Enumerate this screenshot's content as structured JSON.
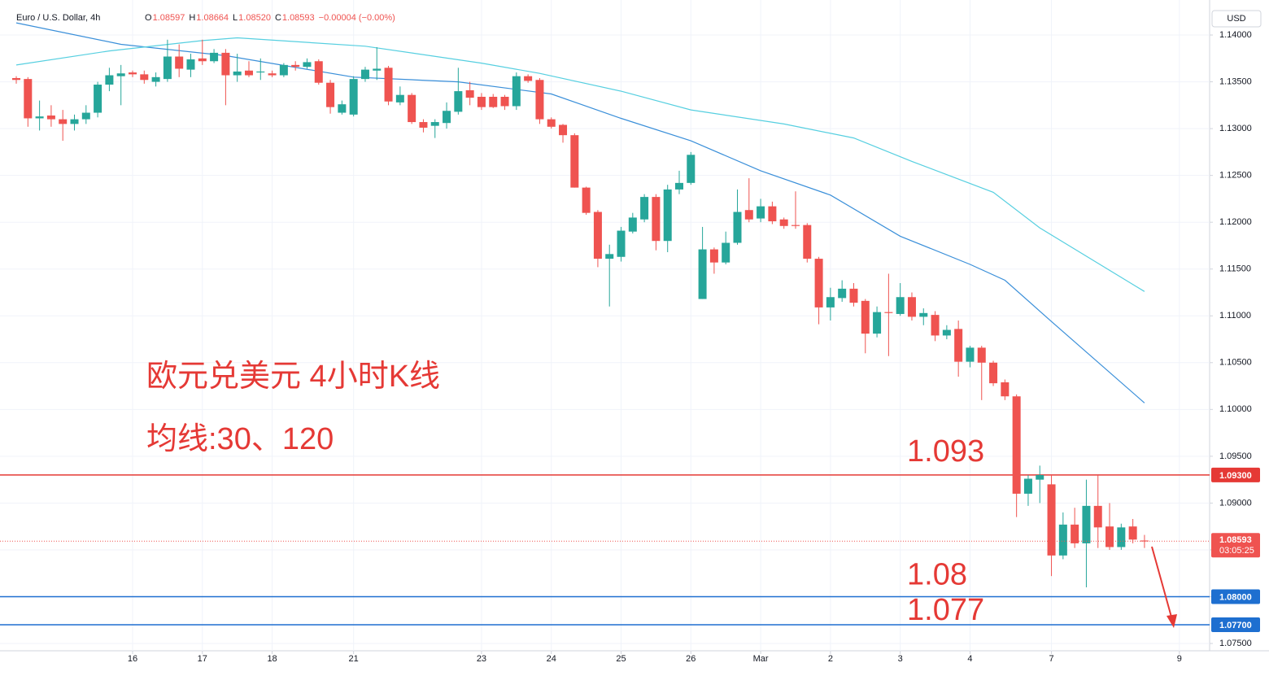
{
  "header": {
    "symbol": "Euro / U.S. Dollar, 4h",
    "ohlc": [
      {
        "key": "O",
        "value": "1.08597"
      },
      {
        "key": "H",
        "value": "1.08664"
      },
      {
        "key": "L",
        "value": "1.08520"
      },
      {
        "key": "C",
        "value": "1.08593"
      }
    ],
    "change": "−0.00004 (−0.00%)",
    "currency": "USD"
  },
  "chart_data": {
    "type": "candlestick",
    "annotations": [
      "欧元兑美元 4小时K线",
      "均线:30、120"
    ],
    "up_color": "#26a69a",
    "down_color": "#ef5350",
    "grid": true,
    "open": [
      1.1354,
      1.1353,
      1.1311,
      1.1314,
      1.131,
      1.1305,
      1.131,
      1.1317,
      1.1347,
      1.1356,
      1.136,
      1.1358,
      1.135,
      1.1353,
      1.1377,
      1.1363,
      1.1375,
      1.1372,
      1.1381,
      1.1357,
      1.1362,
      1.136,
      1.1359,
      1.1357,
      1.1368,
      1.1366,
      1.1372,
      1.1349,
      1.1317,
      1.1315,
      1.1353,
      1.1362,
      1.1365,
      1.1328,
      1.1336,
      1.1307,
      1.1303,
      1.1306,
      1.1318,
      1.1341,
      1.1334,
      1.1334,
      1.1334,
      1.1324,
      1.1356,
      1.1352,
      1.131,
      1.1304,
      1.1293,
      1.1237,
      1.1211,
      1.1161,
      1.1163,
      1.119,
      1.1203,
      1.1227,
      1.118,
      1.1235,
      1.1242,
      1.1118,
      1.1171,
      1.1157,
      1.1178,
      1.1213,
      1.1204,
      1.1217,
      1.1203,
      1.1197,
      1.1197,
      1.1161,
      1.1109,
      1.1119,
      1.1129,
      1.1116,
      1.1081,
      1.1104,
      1.1102,
      1.112,
      1.1099,
      1.1101,
      1.1079,
      1.1086,
      1.1051,
      1.1066,
      1.105,
      1.1029,
      1.1014,
      1.091,
      1.0925,
      1.092,
      1.0844,
      1.0877,
      1.0857,
      1.0897,
      1.0875,
      1.0853,
      1.0875,
      1.086
    ],
    "high": [
      1.1356,
      1.1355,
      1.133,
      1.1325,
      1.132,
      1.1315,
      1.1325,
      1.135,
      1.1365,
      1.1368,
      1.1362,
      1.1362,
      1.136,
      1.1395,
      1.139,
      1.138,
      1.1395,
      1.1385,
      1.1385,
      1.138,
      1.1372,
      1.1375,
      1.1362,
      1.137,
      1.1372,
      1.1375,
      1.1374,
      1.1352,
      1.133,
      1.1356,
      1.1366,
      1.1387,
      1.1367,
      1.1345,
      1.1338,
      1.131,
      1.131,
      1.1328,
      1.1365,
      1.135,
      1.1338,
      1.1337,
      1.1336,
      1.136,
      1.1358,
      1.1354,
      1.1312,
      1.1305,
      1.1295,
      1.1238,
      1.1213,
      1.1176,
      1.1195,
      1.121,
      1.123,
      1.123,
      1.124,
      1.1255,
      1.1275,
      1.1195,
      1.1173,
      1.119,
      1.1235,
      1.1247,
      1.1225,
      1.1222,
      1.1205,
      1.1233,
      1.1199,
      1.1163,
      1.113,
      1.1138,
      1.1135,
      1.1118,
      1.111,
      1.1145,
      1.1135,
      1.1125,
      1.1108,
      1.1105,
      1.109,
      1.1095,
      1.1068,
      1.1068,
      1.1052,
      1.1032,
      1.1016,
      1.093,
      1.094,
      1.093,
      1.089,
      1.0895,
      1.0925,
      1.093,
      1.09,
      1.0878,
      1.0883,
      1.0866
    ],
    "low": [
      1.1348,
      1.1302,
      1.1298,
      1.1302,
      1.1287,
      1.1298,
      1.1305,
      1.1312,
      1.134,
      1.1325,
      1.1355,
      1.1348,
      1.1345,
      1.135,
      1.1355,
      1.1355,
      1.1368,
      1.137,
      1.1325,
      1.135,
      1.1355,
      1.1352,
      1.1355,
      1.1355,
      1.1362,
      1.1364,
      1.1347,
      1.1316,
      1.1315,
      1.1313,
      1.135,
      1.1352,
      1.1325,
      1.1325,
      1.1305,
      1.1296,
      1.129,
      1.13,
      1.1315,
      1.1325,
      1.132,
      1.1322,
      1.132,
      1.132,
      1.1349,
      1.1305,
      1.13,
      1.1285,
      1.1237,
      1.1208,
      1.1152,
      1.111,
      1.1158,
      1.1188,
      1.12,
      1.117,
      1.1168,
      1.123,
      1.124,
      1.1118,
      1.1145,
      1.1155,
      1.1176,
      1.12,
      1.12,
      1.1198,
      1.1193,
      1.1193,
      1.1157,
      1.1091,
      1.1095,
      1.1115,
      1.111,
      1.106,
      1.1077,
      1.1057,
      1.11,
      1.1095,
      1.109,
      1.1073,
      1.1075,
      1.1035,
      1.1045,
      1.101,
      1.1025,
      1.101,
      1.0885,
      1.0897,
      1.09,
      1.0822,
      1.084,
      1.0852,
      1.081,
      1.0852,
      1.085,
      1.085,
      1.0857,
      1.0852
    ],
    "close": [
      1.1352,
      1.1311,
      1.1313,
      1.131,
      1.1305,
      1.131,
      1.1317,
      1.1347,
      1.1357,
      1.1359,
      1.1358,
      1.1352,
      1.1355,
      1.1377,
      1.1364,
      1.1374,
      1.1372,
      1.1381,
      1.1357,
      1.1361,
      1.1357,
      1.1361,
      1.1357,
      1.1368,
      1.1366,
      1.1371,
      1.1349,
      1.1323,
      1.1326,
      1.1353,
      1.1363,
      1.1364,
      1.1329,
      1.1336,
      1.1307,
      1.1301,
      1.1307,
      1.1319,
      1.134,
      1.1333,
      1.1323,
      1.1323,
      1.1324,
      1.1356,
      1.1351,
      1.131,
      1.1302,
      1.1293,
      1.1237,
      1.121,
      1.1161,
      1.1166,
      1.1191,
      1.1205,
      1.1227,
      1.118,
      1.1235,
      1.1242,
      1.1272,
      1.1171,
      1.1157,
      1.1178,
      1.1211,
      1.1203,
      1.1217,
      1.1201,
      1.1196,
      1.1196,
      1.1161,
      1.1109,
      1.112,
      1.1129,
      1.1114,
      1.1081,
      1.1104,
      1.1103,
      1.112,
      1.1099,
      1.1103,
      1.1079,
      1.1085,
      1.1051,
      1.1066,
      1.105,
      1.1028,
      1.1014,
      1.091,
      1.0926,
      1.093,
      1.0844,
      1.0877,
      1.0857,
      1.0897,
      1.0874,
      1.0853,
      1.0874,
      1.0861,
      1.0859
    ],
    "series": [
      {
        "color": "#3a8fd9",
        "x": [
          0,
          9,
          18,
          29,
          38,
          46,
          52,
          58,
          64,
          70,
          76,
          82,
          85,
          89,
          97
        ],
        "values": [
          1.1413,
          1.139,
          1.1378,
          1.1355,
          1.135,
          1.1337,
          1.1311,
          1.1287,
          1.1255,
          1.1229,
          1.1185,
          1.1155,
          1.1138,
          1.1094,
          1.1007
        ]
      },
      {
        "color": "#56cfe0",
        "x": [
          0,
          8,
          16,
          19,
          30,
          40,
          45,
          52,
          58,
          66,
          72,
          77,
          84,
          88,
          97
        ],
        "values": [
          1.1368,
          1.1383,
          1.1394,
          1.1397,
          1.1388,
          1.137,
          1.1359,
          1.134,
          1.132,
          1.1305,
          1.129,
          1.1265,
          1.1232,
          1.1194,
          1.1126
        ]
      }
    ],
    "levels": [
      {
        "value": 1.093,
        "label": "1.09300",
        "annotation": "1.093",
        "color": "#e53935"
      },
      {
        "value": 1.08,
        "label": "1.08000",
        "annotation": "1.08",
        "color": "#1e6fd0"
      },
      {
        "value": 1.077,
        "label": "1.07700",
        "annotation": "1.077",
        "color": "#1e6fd0"
      }
    ],
    "last_price": {
      "value": 1.08593,
      "label": "1.08593",
      "countdown": "03:05:25"
    },
    "xlim": [
      -1.4,
      102.6
    ],
    "xticks": [
      {
        "value": 10,
        "label": "16"
      },
      {
        "value": 16,
        "label": "17"
      },
      {
        "value": 22,
        "label": "18"
      },
      {
        "value": 29,
        "label": "21"
      },
      {
        "value": 40,
        "label": "23"
      },
      {
        "value": 46,
        "label": "24"
      },
      {
        "value": 52,
        "label": "25"
      },
      {
        "value": 58,
        "label": "26"
      },
      {
        "value": 64,
        "label": "Mar"
      },
      {
        "value": 70,
        "label": "2"
      },
      {
        "value": 76,
        "label": "3"
      },
      {
        "value": 82,
        "label": "4"
      },
      {
        "value": 89,
        "label": "7"
      },
      {
        "value": 100,
        "label": "9"
      }
    ],
    "ylim": [
      1.07422,
      1.14374
    ],
    "yticks": [
      {
        "value": 1.14,
        "label": "1.14000"
      },
      {
        "value": 1.135,
        "label": "1.13500"
      },
      {
        "value": 1.13,
        "label": "1.13000"
      },
      {
        "value": 1.125,
        "label": "1.12500"
      },
      {
        "value": 1.12,
        "label": "1.12000"
      },
      {
        "value": 1.115,
        "label": "1.11500"
      },
      {
        "value": 1.11,
        "label": "1.11000"
      },
      {
        "value": 1.105,
        "label": "1.10500"
      },
      {
        "value": 1.1,
        "label": "1.10000"
      },
      {
        "value": 1.095,
        "label": "1.09500"
      },
      {
        "value": 1.09,
        "label": "1.09000"
      },
      {
        "value": 1.085,
        "label": "1.08500"
      },
      {
        "value": 1.08,
        "label": "1.08000"
      },
      {
        "value": 1.075,
        "label": "1.07500"
      }
    ]
  }
}
